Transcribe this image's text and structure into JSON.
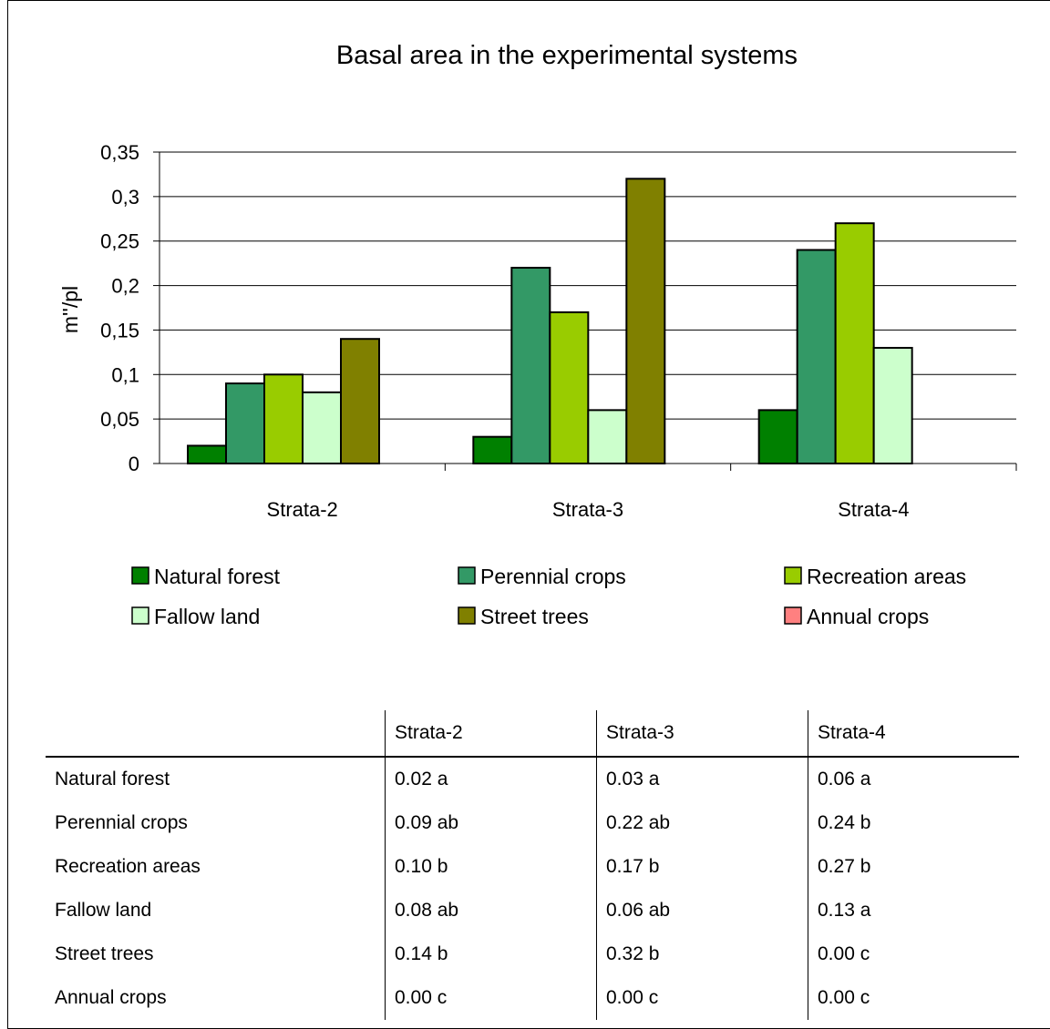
{
  "chart_data": {
    "type": "bar",
    "title": "Basal area in the experimental systems",
    "ylabel": "m''/pl",
    "xlabel": "",
    "ylim": [
      0,
      0.35
    ],
    "yticks": [
      0,
      0.05,
      0.1,
      0.15,
      0.2,
      0.25,
      0.3,
      0.35
    ],
    "ytick_labels": [
      "0",
      "0,05",
      "0,1",
      "0,15",
      "0,2",
      "0,25",
      "0,3",
      "0,35"
    ],
    "grid": true,
    "legend_position": "bottom",
    "categories": [
      "Strata-2",
      "Strata-3",
      "Strata-4"
    ],
    "series": [
      {
        "name": "Natural forest",
        "color": "#008000",
        "values": [
          0.02,
          0.03,
          0.06
        ]
      },
      {
        "name": "Perennial crops",
        "color": "#339966",
        "values": [
          0.09,
          0.22,
          0.24
        ]
      },
      {
        "name": "Recreation areas",
        "color": "#99cc00",
        "values": [
          0.1,
          0.17,
          0.27
        ]
      },
      {
        "name": "Fallow land",
        "color": "#ccffcc",
        "values": [
          0.08,
          0.06,
          0.13
        ]
      },
      {
        "name": "Street trees",
        "color": "#808000",
        "values": [
          0.14,
          0.32,
          0
        ]
      },
      {
        "name": "Annual crops",
        "color": "#ff8080",
        "values": [
          0,
          0,
          0
        ]
      }
    ]
  },
  "table": {
    "headers": [
      "",
      "Strata-2",
      "Strata-3",
      "Strata-4"
    ],
    "rows": [
      [
        "Natural forest",
        "0.02 a",
        "0.03 a",
        "0.06 a"
      ],
      [
        "Perennial crops",
        "0.09 ab",
        "0.22 ab",
        "0.24 b"
      ],
      [
        "Recreation areas",
        "0.10 b",
        "0.17 b",
        "0.27 b"
      ],
      [
        "Fallow land",
        "0.08 ab",
        "0.06 ab",
        "0.13 a"
      ],
      [
        "Street trees",
        "0.14 b",
        "0.32 b",
        "0.00 c"
      ],
      [
        "Annual crops",
        "0.00 c",
        "0.00 c",
        "0.00 c"
      ]
    ]
  }
}
